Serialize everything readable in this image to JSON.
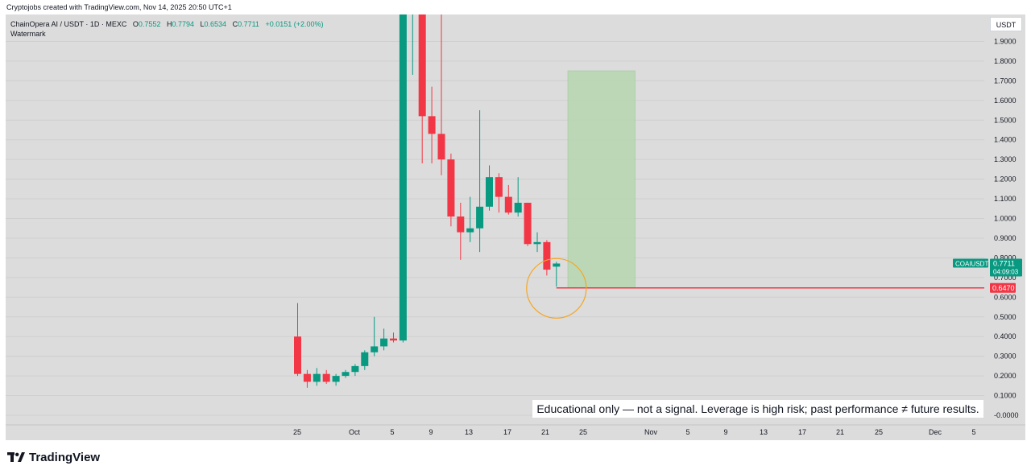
{
  "header": {
    "created_by": "Cryptojobs created with TradingView.com, Nov 14, 2025 20:50 UTC+1"
  },
  "legend": {
    "symbol": "ChainOpera AI / USDT · 1D · MEXC",
    "open_label": "O",
    "open": "0.7552",
    "high_label": "H",
    "high": "0.7794",
    "low_label": "L",
    "low": "0.6534",
    "close_label": "C",
    "close": "0.7711",
    "change": "+0.0151 (+2.00%)",
    "watermark": "Watermark"
  },
  "unit_button": "USDT",
  "disclaimer": "Educational only — not a signal. Leverage is high risk; past performance ≠ future results.",
  "brand": "TradingView",
  "colors": {
    "up": "#089981",
    "down": "#f23645",
    "background": "#dcdcdc",
    "target_zone": "#b6d7b0",
    "circle": "#f5a623"
  },
  "chart_data": {
    "type": "candlestick",
    "x_labels": [
      "25",
      "Oct",
      "5",
      "9",
      "13",
      "17",
      "21",
      "25",
      "Nov",
      "5",
      "9",
      "13",
      "17",
      "21",
      "25",
      "Dec",
      "5"
    ],
    "y_ticks": [
      "1.9000",
      "1.8000",
      "1.7000",
      "1.6000",
      "1.5000",
      "1.4000",
      "1.3000",
      "1.2000",
      "1.1000",
      "1.0000",
      "0.9000",
      "0.8000",
      "0.7000",
      "0.6000",
      "0.5000",
      "0.4000",
      "0.3000",
      "0.2000",
      "0.1000",
      "-0.0000"
    ],
    "ylim": [
      -0.0,
      1.9
    ],
    "candles": [
      {
        "o": 0.4,
        "h": 0.57,
        "l": 0.2,
        "c": 0.21
      },
      {
        "o": 0.21,
        "h": 0.23,
        "l": 0.14,
        "c": 0.17
      },
      {
        "o": 0.17,
        "h": 0.24,
        "l": 0.15,
        "c": 0.21
      },
      {
        "o": 0.21,
        "h": 0.23,
        "l": 0.16,
        "c": 0.17
      },
      {
        "o": 0.17,
        "h": 0.21,
        "l": 0.15,
        "c": 0.2
      },
      {
        "o": 0.2,
        "h": 0.23,
        "l": 0.19,
        "c": 0.22
      },
      {
        "o": 0.22,
        "h": 0.26,
        "l": 0.2,
        "c": 0.25
      },
      {
        "o": 0.25,
        "h": 0.33,
        "l": 0.23,
        "c": 0.32
      },
      {
        "o": 0.32,
        "h": 0.5,
        "l": 0.3,
        "c": 0.35
      },
      {
        "o": 0.35,
        "h": 0.44,
        "l": 0.33,
        "c": 0.39
      },
      {
        "o": 0.39,
        "h": 0.42,
        "l": 0.37,
        "c": 0.38
      },
      {
        "o": 0.38,
        "h": 2.05,
        "l": 0.37,
        "c": 2.05
      },
      {
        "o": 2.05,
        "h": 2.05,
        "l": 1.73,
        "c": 2.05
      },
      {
        "o": 2.05,
        "h": 2.05,
        "l": 1.28,
        "c": 1.52
      },
      {
        "o": 1.52,
        "h": 1.67,
        "l": 1.28,
        "c": 1.43
      },
      {
        "o": 1.43,
        "h": 2.05,
        "l": 1.22,
        "c": 1.3
      },
      {
        "o": 1.3,
        "h": 1.33,
        "l": 0.96,
        "c": 1.01
      },
      {
        "o": 1.01,
        "h": 1.08,
        "l": 0.79,
        "c": 0.93
      },
      {
        "o": 0.93,
        "h": 1.11,
        "l": 0.88,
        "c": 0.95
      },
      {
        "o": 0.95,
        "h": 1.55,
        "l": 0.83,
        "c": 1.06
      },
      {
        "o": 1.06,
        "h": 1.27,
        "l": 1.04,
        "c": 1.21
      },
      {
        "o": 1.21,
        "h": 1.23,
        "l": 1.03,
        "c": 1.11
      },
      {
        "o": 1.11,
        "h": 1.17,
        "l": 1.02,
        "c": 1.03
      },
      {
        "o": 1.03,
        "h": 1.21,
        "l": 1.01,
        "c": 1.08
      },
      {
        "o": 1.08,
        "h": 1.08,
        "l": 0.86,
        "c": 0.87
      },
      {
        "o": 0.87,
        "h": 0.93,
        "l": 0.83,
        "c": 0.88
      },
      {
        "o": 0.88,
        "h": 0.89,
        "l": 0.71,
        "c": 0.74
      },
      {
        "o": 0.7552,
        "h": 0.7794,
        "l": 0.6534,
        "c": 0.7711
      }
    ],
    "target_zone": {
      "from_index": 28.2,
      "to_index": 35.2,
      "top": 1.75,
      "bottom": 0.647
    },
    "price_line": {
      "value": 0.647,
      "label": "0.6470"
    },
    "last_price": {
      "symbol": "COAIUSDT",
      "value": "0.7711",
      "countdown": "04:09:03"
    }
  }
}
